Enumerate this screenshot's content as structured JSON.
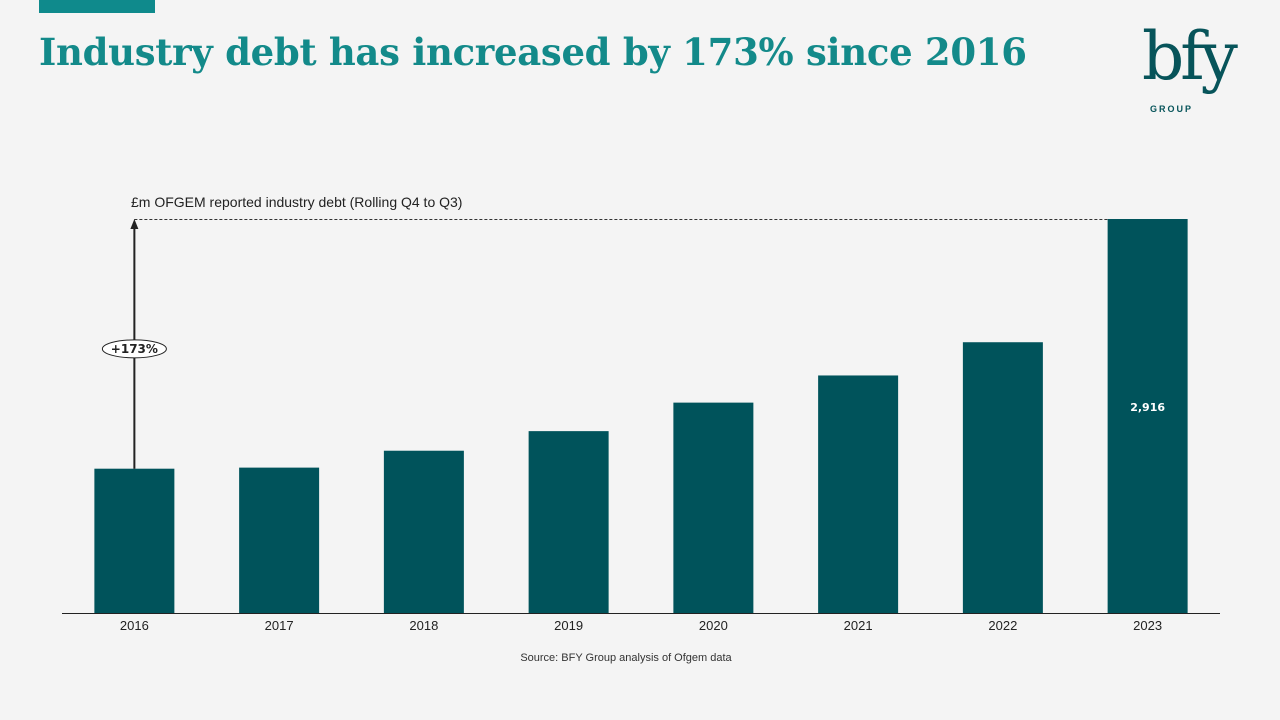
{
  "page": {
    "title": "Industry debt has increased by 173% since 2016",
    "source": "Source: BFY Group analysis of Ofgem data"
  },
  "logo": {
    "mark": "bfy",
    "subtext": "GROUP"
  },
  "colors": {
    "accent": "#0f8a8c",
    "title": "#138a8a",
    "bar": "#00535b",
    "text": "#222222"
  },
  "chart_data": {
    "type": "bar",
    "ylabel": "£m OFGEM reported industry debt (Rolling  Q4 to Q3)",
    "categories": [
      "2016",
      "2017",
      "2018",
      "2019",
      "2020",
      "2021",
      "2022",
      "2023"
    ],
    "values": [
      1068,
      1076,
      1201,
      1346,
      1557,
      1758,
      2004,
      2916
    ],
    "data_labels": [
      {
        "index": 7,
        "text": "2,916"
      }
    ],
    "annotation": {
      "text": "+173%",
      "from_index": 0,
      "to_index": 7
    },
    "ylim": [
      0,
      2916
    ],
    "grid": false,
    "legend": "none"
  }
}
